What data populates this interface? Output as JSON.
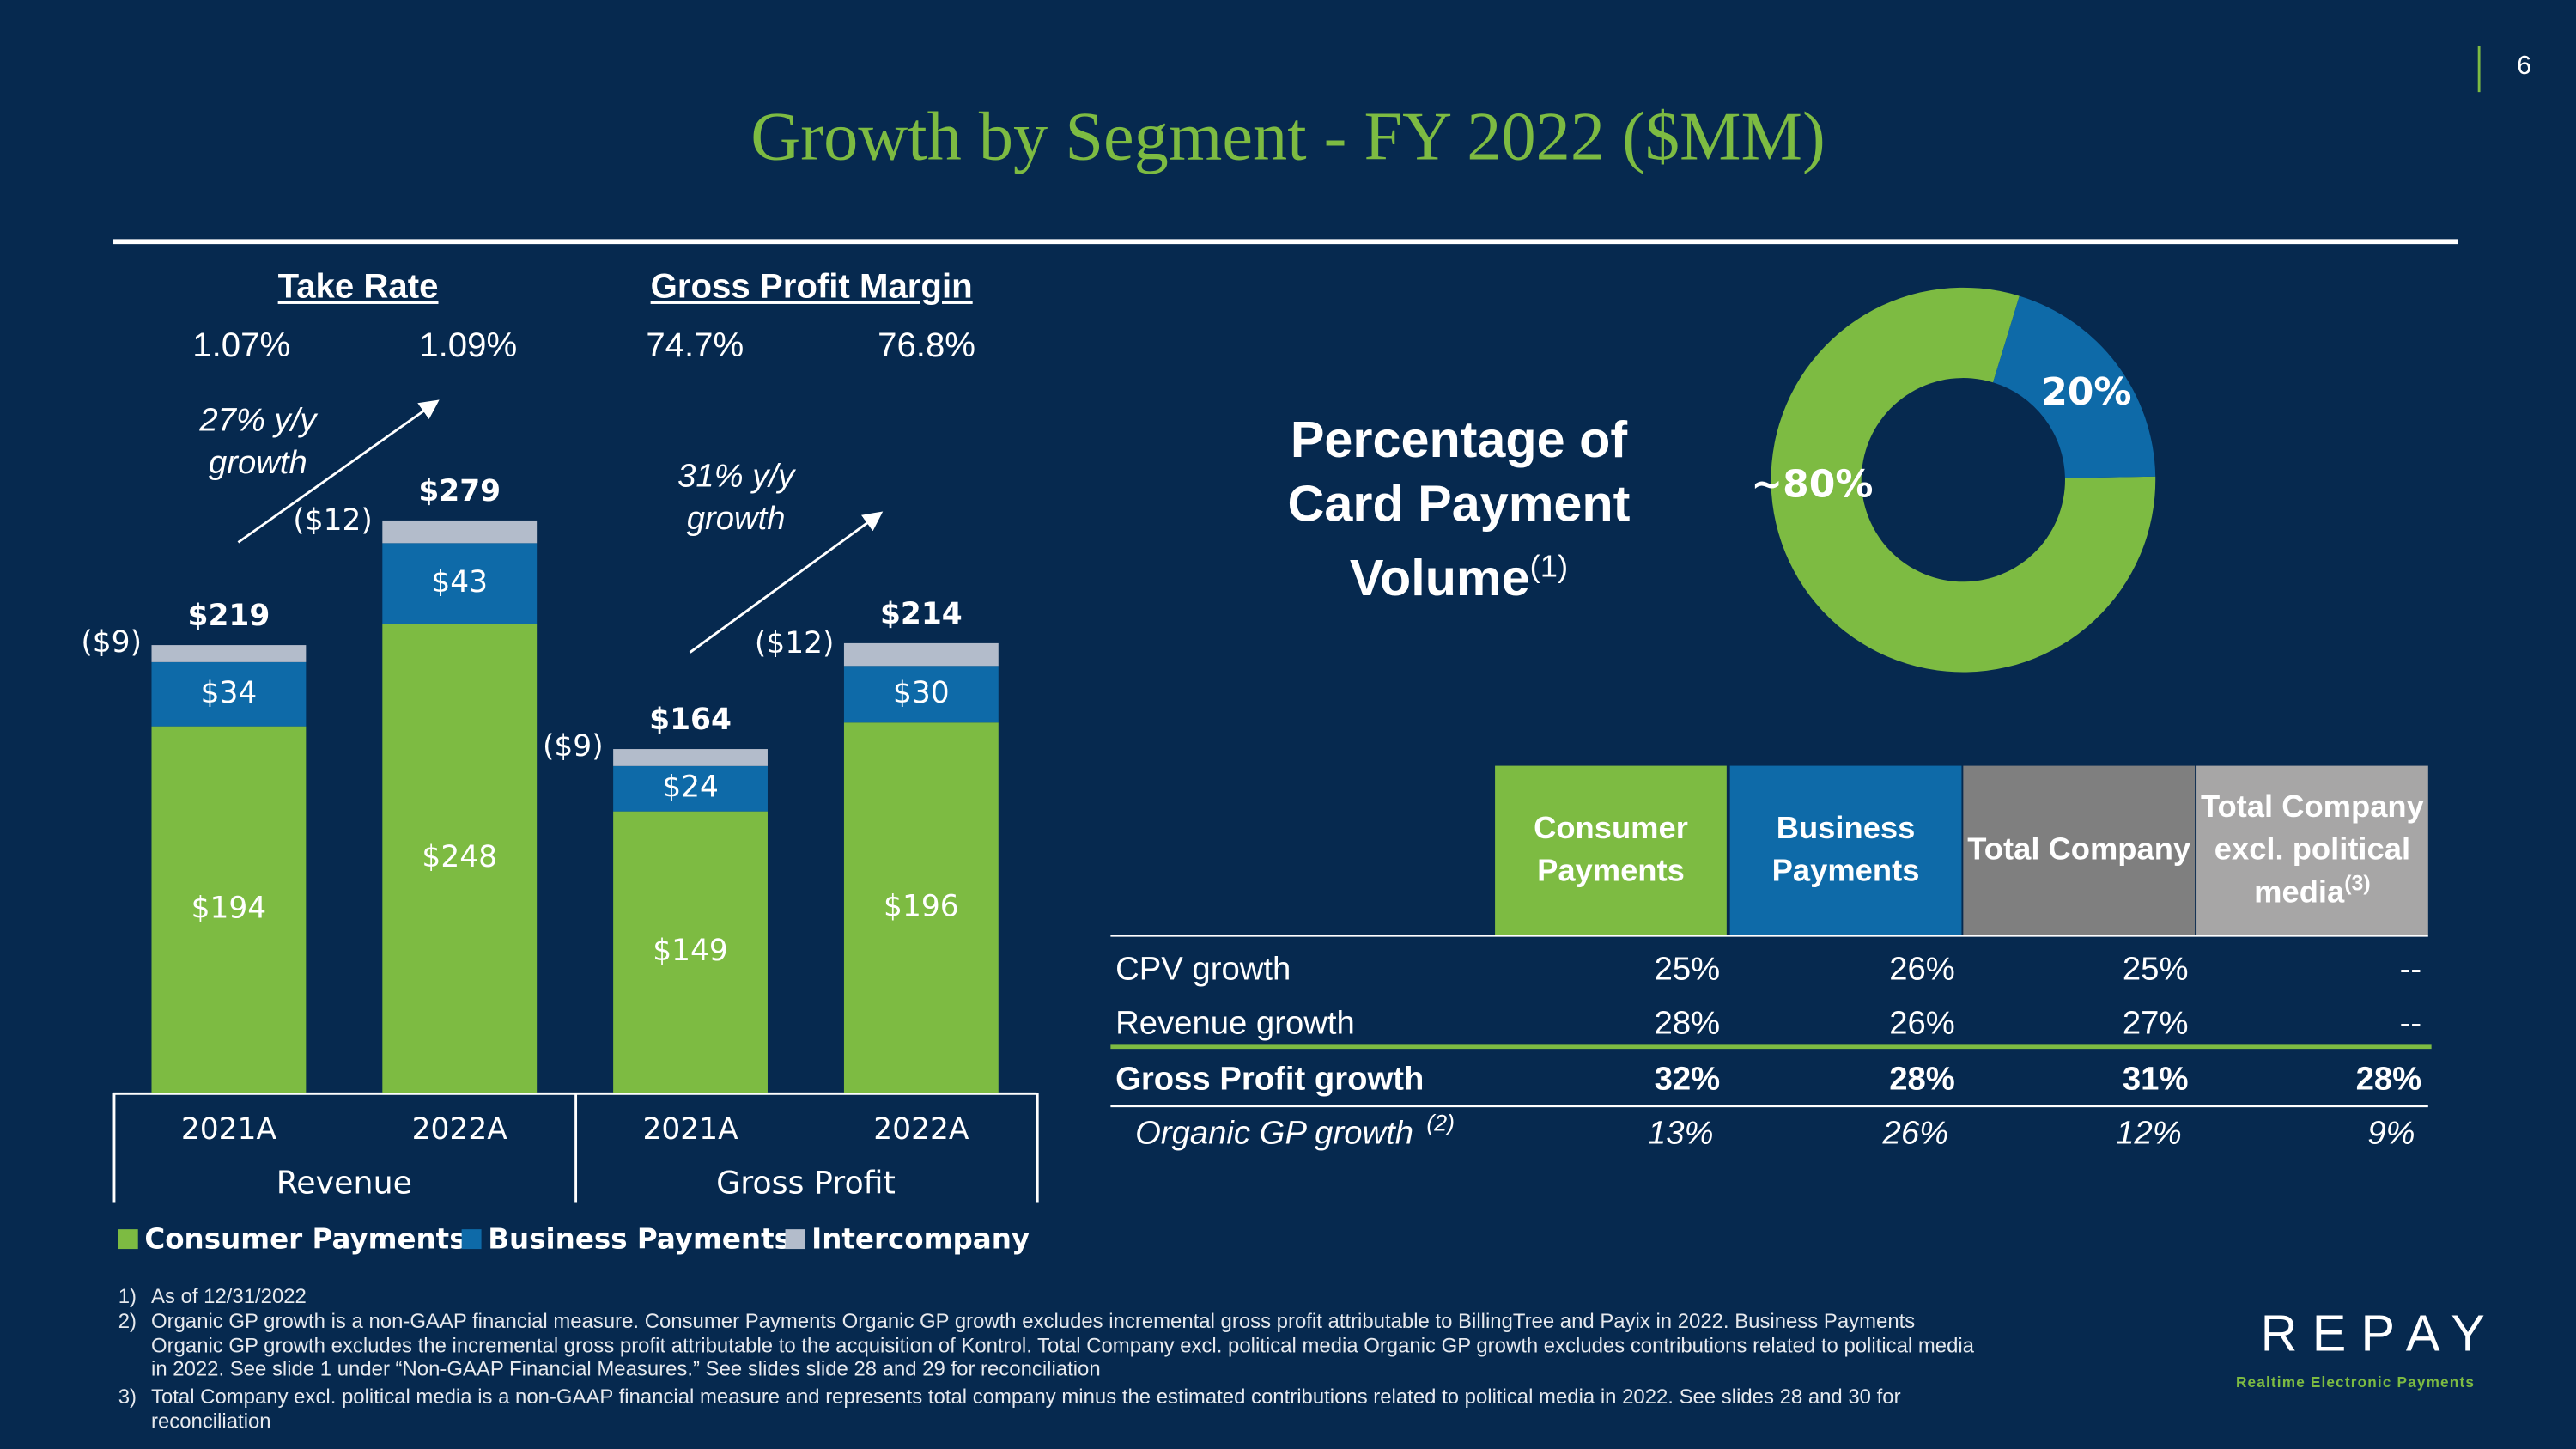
{
  "page_number": "6",
  "title": "Growth by Segment - FY 2022 ($MM)",
  "metrics": [
    {
      "title": "Take Rate",
      "values": [
        "1.07%",
        "1.09%"
      ]
    },
    {
      "title": "Gross Profit Margin",
      "values": [
        "74.7%",
        "76.8%"
      ]
    }
  ],
  "chart_data": [
    {
      "type": "stacked_bar",
      "categories": [
        "2021A",
        "2022A",
        "2021A",
        "2022A"
      ],
      "groups": [
        "Revenue",
        "Gross Profit"
      ],
      "series": [
        {
          "name": "Consumer Payments",
          "color": "#7dbb42",
          "values": [
            194,
            248,
            149,
            196
          ],
          "value_labels": [
            "$194",
            "$248",
            "$149",
            "$196"
          ]
        },
        {
          "name": "Business Payments",
          "color": "#0e6aa8",
          "values": [
            34,
            43,
            24,
            30
          ],
          "value_labels": [
            "$34",
            "$43",
            "$24",
            "$30"
          ]
        },
        {
          "name": "Intercompany",
          "color": "#b3bccb",
          "values": [
            -9,
            -12,
            -9,
            -12
          ],
          "value_labels": [
            "($9)",
            "($12)",
            "($9)",
            "($12)"
          ]
        }
      ],
      "total_labels": [
        "$219",
        "$279",
        "$164",
        "$214"
      ],
      "annotations": [
        "27% y/y growth",
        "31% y/y growth"
      ]
    },
    {
      "type": "pie",
      "donut": true,
      "title": "Percentage of Card Payment Volume",
      "title_note": "(1)",
      "values": [
        80,
        20
      ],
      "value_labels": [
        "~80%",
        "20%"
      ],
      "colors": [
        "#7dbb42",
        "#0e6aa8"
      ]
    }
  ],
  "table": {
    "headers": [
      "Consumer Payments",
      "Business Payments",
      "Total Company",
      "Total Company excl. political media"
    ],
    "header_colors": [
      "#7dbb42",
      "#0e6aa8",
      "#7f7f7f",
      "#a7a6a6"
    ],
    "header_note": "(3)",
    "rows": [
      {
        "label": "CPV growth",
        "cells": [
          "25%",
          "26%",
          "25%",
          "--"
        ]
      },
      {
        "label": "Revenue growth",
        "cells": [
          "28%",
          "26%",
          "27%",
          "--"
        ]
      },
      {
        "label": "Gross Profit growth",
        "cells": [
          "32%",
          "28%",
          "31%",
          "28%"
        ]
      },
      {
        "label": "Organic GP growth",
        "note": "(2)",
        "cells": [
          "13%",
          "26%",
          "12%",
          "9%"
        ]
      }
    ]
  },
  "footnotes": [
    {
      "number": "1)",
      "text": "As of 12/31/2022"
    },
    {
      "number": "2)",
      "text": "Organic GP growth is a non-GAAP financial measure. Consumer Payments Organic GP growth excludes incremental gross profit attributable to BillingTree and Payix in 2022. Business Payments Organic GP growth excludes the incremental gross profit attributable to the acquisition of Kontrol. Total Company excl. political media Organic GP growth excludes contributions related to political media in 2022. See slide 1 under “Non-GAAP Financial Measures.” See slides slide 28 and 29 for reconciliation"
    },
    {
      "number": "3)",
      "text": "Total Company excl. political media is a non-GAAP financial measure and represents total company minus the estimated contributions related to political media in 2022. See slides 28 and 30 for reconciliation"
    }
  ],
  "logo": {
    "name": "REPAY",
    "tagline": "Realtime Electronic Payments"
  }
}
